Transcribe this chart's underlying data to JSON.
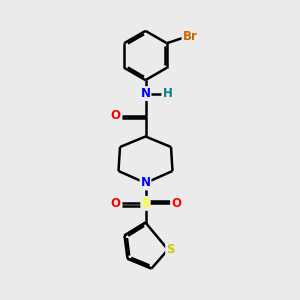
{
  "background_color": "#ebebeb",
  "bond_color": "#000000",
  "atom_colors": {
    "N": "#0000ff",
    "O": "#ff0000",
    "S_thiophene": "#cccc00",
    "S_sulfonyl": "#ffff00",
    "Br": "#cc6600",
    "H": "#008080",
    "C": "#000000"
  },
  "figsize": [
    3.0,
    3.0
  ],
  "dpi": 100
}
